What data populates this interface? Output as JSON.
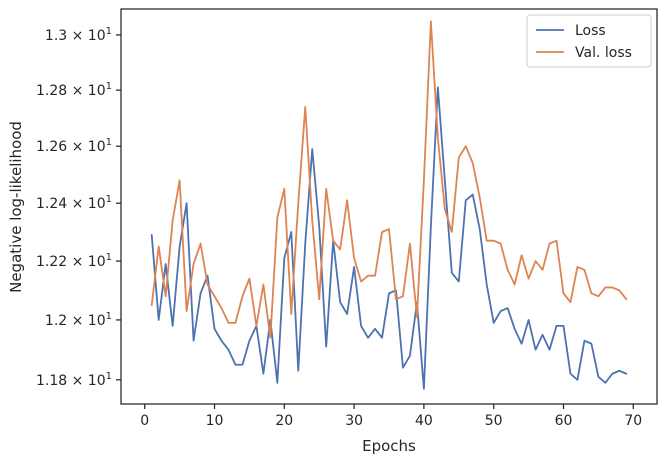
{
  "chart_data": {
    "type": "line",
    "xlabel": "Epochs",
    "ylabel": "Negative log-likelihood",
    "xlim": [
      -3.4,
      73.4
    ],
    "ylim": [
      11.72,
      13.095
    ],
    "y_scale": "log",
    "grid": false,
    "legend_position": "top-right",
    "x_ticks": [
      0,
      10,
      20,
      30,
      40,
      50,
      60,
      70
    ],
    "x_tick_labels": [
      "0",
      "10",
      "20",
      "30",
      "40",
      "50",
      "60",
      "70"
    ],
    "y_ticks": [
      11.8,
      12.0,
      12.2,
      12.4,
      12.6,
      12.8,
      13.0
    ],
    "y_tick_labels": [
      {
        "coef": "1.18",
        "base": "10",
        "exp": "1"
      },
      {
        "coef": "1.2",
        "base": "10",
        "exp": "1"
      },
      {
        "coef": "1.22",
        "base": "10",
        "exp": "1"
      },
      {
        "coef": "1.24",
        "base": "10",
        "exp": "1"
      },
      {
        "coef": "1.26",
        "base": "10",
        "exp": "1"
      },
      {
        "coef": "1.28",
        "base": "10",
        "exp": "1"
      },
      {
        "coef": "1.3",
        "base": "10",
        "exp": "1"
      }
    ],
    "x": [
      1,
      2,
      3,
      4,
      5,
      6,
      7,
      8,
      9,
      10,
      11,
      12,
      13,
      14,
      15,
      16,
      17,
      18,
      19,
      20,
      21,
      22,
      23,
      24,
      25,
      26,
      27,
      28,
      29,
      30,
      31,
      32,
      33,
      34,
      35,
      36,
      37,
      38,
      39,
      40,
      41,
      42,
      43,
      44,
      45,
      46,
      47,
      48,
      49,
      50,
      51,
      52,
      53,
      54,
      55,
      56,
      57,
      58,
      59,
      60,
      61,
      62,
      63,
      64,
      65,
      66,
      67,
      68,
      69
    ],
    "series": [
      {
        "name": "Loss",
        "color": "#4c72b0",
        "values": [
          12.29,
          12.0,
          12.19,
          11.98,
          12.25,
          12.4,
          11.93,
          12.09,
          12.15,
          11.97,
          11.93,
          11.9,
          11.85,
          11.85,
          11.93,
          11.98,
          11.82,
          12.0,
          11.79,
          12.21,
          12.3,
          11.83,
          12.26,
          12.59,
          12.32,
          11.91,
          12.27,
          12.06,
          12.02,
          12.18,
          11.98,
          11.94,
          11.97,
          11.94,
          12.09,
          12.1,
          11.84,
          11.88,
          12.06,
          11.77,
          12.32,
          12.81,
          12.48,
          12.16,
          12.13,
          12.41,
          12.43,
          12.31,
          12.12,
          11.99,
          12.03,
          12.04,
          11.97,
          11.92,
          12.0,
          11.9,
          11.95,
          11.9,
          11.98,
          11.98,
          11.82,
          11.8,
          11.93,
          11.92,
          11.81,
          11.79,
          11.82,
          11.83,
          11.82
        ]
      },
      {
        "name": "Val. loss",
        "color": "#dd8452",
        "values": [
          12.05,
          12.25,
          12.08,
          12.34,
          12.48,
          12.03,
          12.19,
          12.26,
          12.12,
          12.08,
          12.04,
          11.99,
          11.99,
          12.08,
          12.14,
          11.98,
          12.12,
          11.94,
          12.35,
          12.45,
          12.02,
          12.4,
          12.74,
          12.34,
          12.07,
          12.45,
          12.27,
          12.24,
          12.41,
          12.21,
          12.13,
          12.15,
          12.15,
          12.3,
          12.31,
          12.07,
          12.08,
          12.26,
          12.01,
          12.48,
          13.05,
          12.63,
          12.38,
          12.3,
          12.56,
          12.6,
          12.54,
          12.42,
          12.27,
          12.27,
          12.26,
          12.17,
          12.12,
          12.22,
          12.14,
          12.2,
          12.17,
          12.26,
          12.27,
          12.09,
          12.06,
          12.18,
          12.17,
          12.09,
          12.08,
          12.11,
          12.11,
          12.1,
          12.07
        ]
      }
    ]
  }
}
